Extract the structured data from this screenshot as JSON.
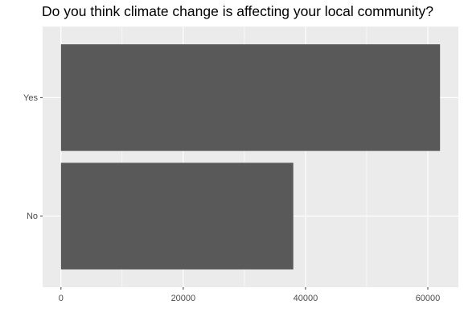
{
  "chart_data": {
    "type": "bar",
    "orientation": "horizontal",
    "title": "Do you think climate change is affecting your local community?",
    "xlabel": "",
    "ylabel": "",
    "categories": [
      "Yes",
      "No"
    ],
    "values": [
      62000,
      38000
    ],
    "xlim": [
      -3000,
      65000
    ],
    "xticks": [
      0,
      20000,
      40000,
      60000
    ],
    "xtick_labels": [
      "0",
      "20000",
      "40000",
      "60000"
    ],
    "grid": true,
    "legend": "none",
    "colors": {
      "bar": "#595959",
      "panel": "#ebebeb",
      "grid": "#ffffff",
      "axis_text": "#4d4d4d",
      "tick": "#333333"
    }
  }
}
